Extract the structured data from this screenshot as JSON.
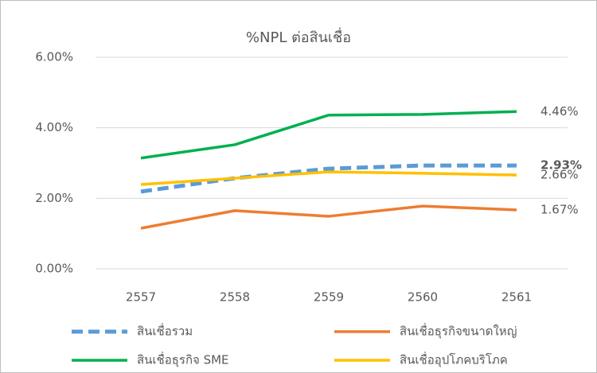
{
  "chart_data": {
    "type": "line",
    "title": "%NPL ต่อสินเชื่อ",
    "categories": [
      "2557",
      "2558",
      "2559",
      "2560",
      "2561"
    ],
    "series": [
      {
        "name": "สินเชื่อรวม",
        "color": "#5b9bd5",
        "dashed": true,
        "values": [
          2.19,
          2.57,
          2.84,
          2.93,
          2.93
        ],
        "value_labels": [
          null,
          null,
          null,
          null,
          "2.93%"
        ]
      },
      {
        "name": "สินเชื่อธุรกิจขนาดใหญ่",
        "color": "#ed7d31",
        "values": [
          1.15,
          1.65,
          1.49,
          1.78,
          1.67
        ],
        "value_labels": [
          null,
          null,
          null,
          null,
          "1.67%"
        ]
      },
      {
        "name": "สินเชื่อธุรกิจ SME",
        "color": "#00b050",
        "values": [
          3.14,
          3.52,
          4.36,
          4.38,
          4.46
        ],
        "value_labels": [
          null,
          null,
          null,
          null,
          "4.46%"
        ]
      },
      {
        "name": "สินเชื่ออุปโภคบริโภค",
        "color": "#ffc000",
        "values": [
          2.39,
          2.57,
          2.75,
          2.71,
          2.66
        ],
        "value_labels": [
          null,
          null,
          null,
          null,
          "2.66%"
        ]
      }
    ],
    "ylim": [
      0,
      6
    ],
    "yticks": [
      {
        "value": 0,
        "label": "0.00%"
      },
      {
        "value": 2,
        "label": "2.00%"
      },
      {
        "value": 4,
        "label": "4.00%"
      },
      {
        "value": 6,
        "label": "6.00%"
      }
    ],
    "grid": true,
    "legend": "bottom"
  }
}
